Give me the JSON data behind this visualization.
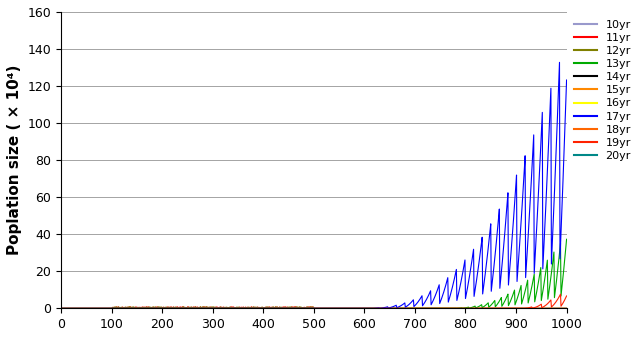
{
  "title": "",
  "ylabel": "Poplation size ( × 10⁴)",
  "xlabel": "",
  "xlim": [
    0,
    1000
  ],
  "ylim": [
    0,
    160
  ],
  "yticks": [
    0,
    20,
    40,
    60,
    80,
    100,
    120,
    140,
    160
  ],
  "xticks": [
    0,
    100,
    200,
    300,
    400,
    500,
    600,
    700,
    800,
    900,
    1000
  ],
  "cycles": [
    10,
    11,
    12,
    13,
    14,
    15,
    16,
    17,
    18,
    19,
    20
  ],
  "colors": {
    "10": "#9999cc",
    "11": "#ff0000",
    "12": "#808000",
    "13": "#00aa00",
    "14": "#000000",
    "15": "#ff8800",
    "16": "#ffff00",
    "17": "#0000ff",
    "18": "#ff6600",
    "19": "#ff2200",
    "20": "#008888"
  },
  "T": 1000,
  "surviving_cycles": [
    13,
    17,
    19
  ],
  "figsize": [
    6.4,
    3.38
  ],
  "dpi": 100,
  "ylabel_fontsize": 11,
  "legend_fontsize": 8,
  "cycle17_max": 145,
  "cycle17_env_start": 595,
  "cycle17_env_power": 2.5,
  "cycle13_max": 40,
  "cycle13_env_start": 760,
  "cycle13_env_power": 2.5,
  "cycle19_max": 10,
  "cycle19_env_start": 905,
  "cycle19_env_power": 2.0
}
